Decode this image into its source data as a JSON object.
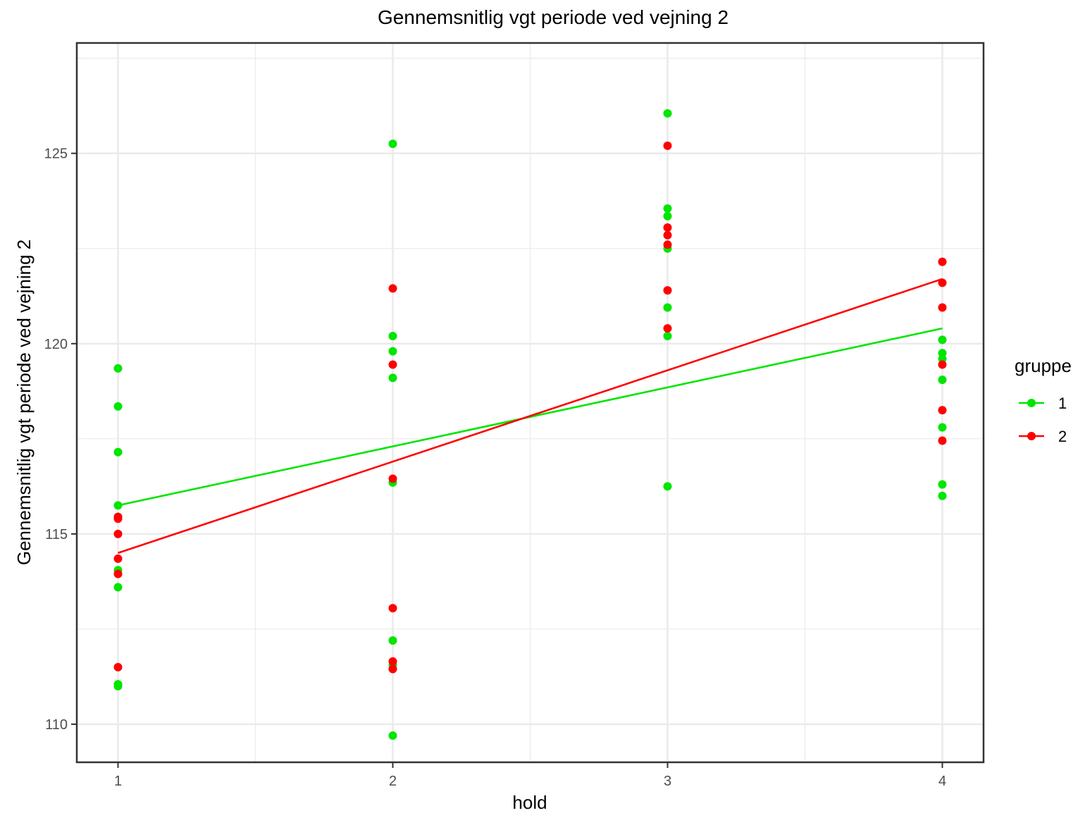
{
  "chart_data": {
    "type": "scatter",
    "title": "Gennemsnitlig vgt periode ved vejning 2",
    "xlabel": "hold",
    "ylabel": "Gennemsnitlig vgt periode ved vejning 2",
    "xlim": [
      0.85,
      4.15
    ],
    "ylim": [
      109.0,
      127.9
    ],
    "x_ticks": [
      1,
      2,
      3,
      4
    ],
    "y_ticks": [
      110,
      115,
      120,
      125
    ],
    "grid": true,
    "legend": {
      "title": "gruppe",
      "position": "right"
    },
    "series": [
      {
        "name": "1",
        "color": "#00e600",
        "points": [
          [
            1,
            119.35
          ],
          [
            1,
            118.35
          ],
          [
            1,
            117.15
          ],
          [
            1,
            115.75
          ],
          [
            1,
            114.05
          ],
          [
            1,
            113.6
          ],
          [
            1,
            111.05
          ],
          [
            1,
            111.0
          ],
          [
            2,
            125.25
          ],
          [
            2,
            120.2
          ],
          [
            2,
            119.8
          ],
          [
            2,
            119.1
          ],
          [
            2,
            116.35
          ],
          [
            2,
            112.2
          ],
          [
            2,
            111.55
          ],
          [
            2,
            109.7
          ],
          [
            3,
            126.05
          ],
          [
            3,
            123.55
          ],
          [
            3,
            123.35
          ],
          [
            3,
            122.5
          ],
          [
            3,
            120.95
          ],
          [
            3,
            120.2
          ],
          [
            3,
            116.25
          ],
          [
            4,
            120.1
          ],
          [
            4,
            119.75
          ],
          [
            4,
            119.6
          ],
          [
            4,
            119.05
          ],
          [
            4,
            117.8
          ],
          [
            4,
            116.3
          ],
          [
            4,
            116.0
          ]
        ],
        "fit": [
          [
            1,
            115.75
          ],
          [
            4,
            120.4
          ]
        ]
      },
      {
        "name": "2",
        "color": "#ff0000",
        "points": [
          [
            1,
            115.45
          ],
          [
            1,
            115.4
          ],
          [
            1,
            115.0
          ],
          [
            1,
            114.35
          ],
          [
            1,
            113.95
          ],
          [
            1,
            111.5
          ],
          [
            2,
            121.45
          ],
          [
            2,
            119.45
          ],
          [
            2,
            116.45
          ],
          [
            2,
            113.05
          ],
          [
            2,
            111.65
          ],
          [
            2,
            111.45
          ],
          [
            3,
            125.2
          ],
          [
            3,
            123.05
          ],
          [
            3,
            122.85
          ],
          [
            3,
            122.6
          ],
          [
            3,
            121.4
          ],
          [
            3,
            120.4
          ],
          [
            4,
            122.15
          ],
          [
            4,
            121.6
          ],
          [
            4,
            120.95
          ],
          [
            4,
            119.45
          ],
          [
            4,
            118.25
          ],
          [
            4,
            117.45
          ]
        ],
        "fit": [
          [
            1,
            114.5
          ],
          [
            4,
            121.7
          ]
        ]
      }
    ]
  }
}
